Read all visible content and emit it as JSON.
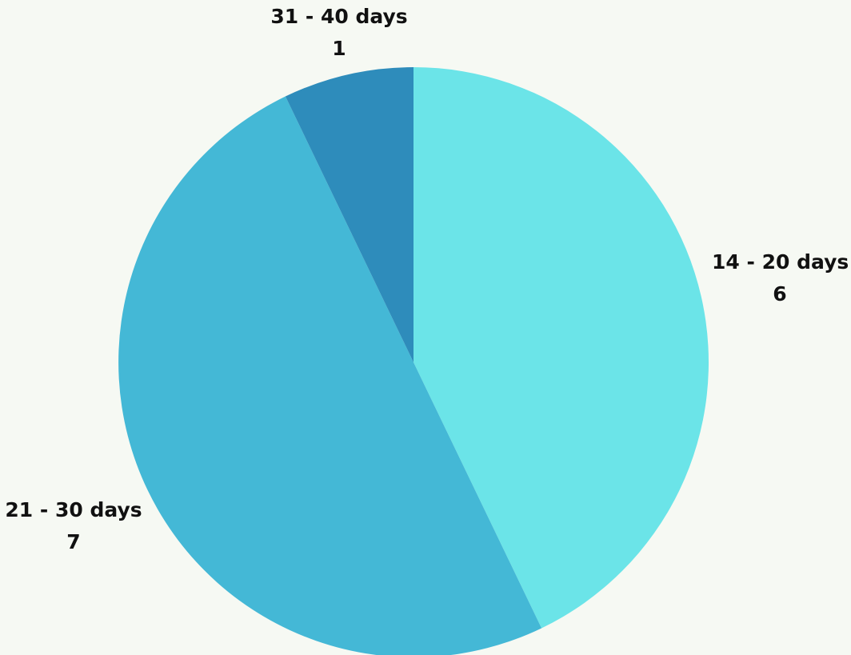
{
  "chart_data": {
    "type": "pie",
    "start_angle_deg": 0,
    "direction": "clockwise",
    "slices": [
      {
        "label": "14 - 20 days",
        "value": 6,
        "color": "#6be4e8"
      },
      {
        "label": "21 - 30 days",
        "value": 7,
        "color": "#44b8d6"
      },
      {
        "label": "31 - 40 days",
        "value": 1,
        "color": "#2e8cbb"
      }
    ]
  }
}
